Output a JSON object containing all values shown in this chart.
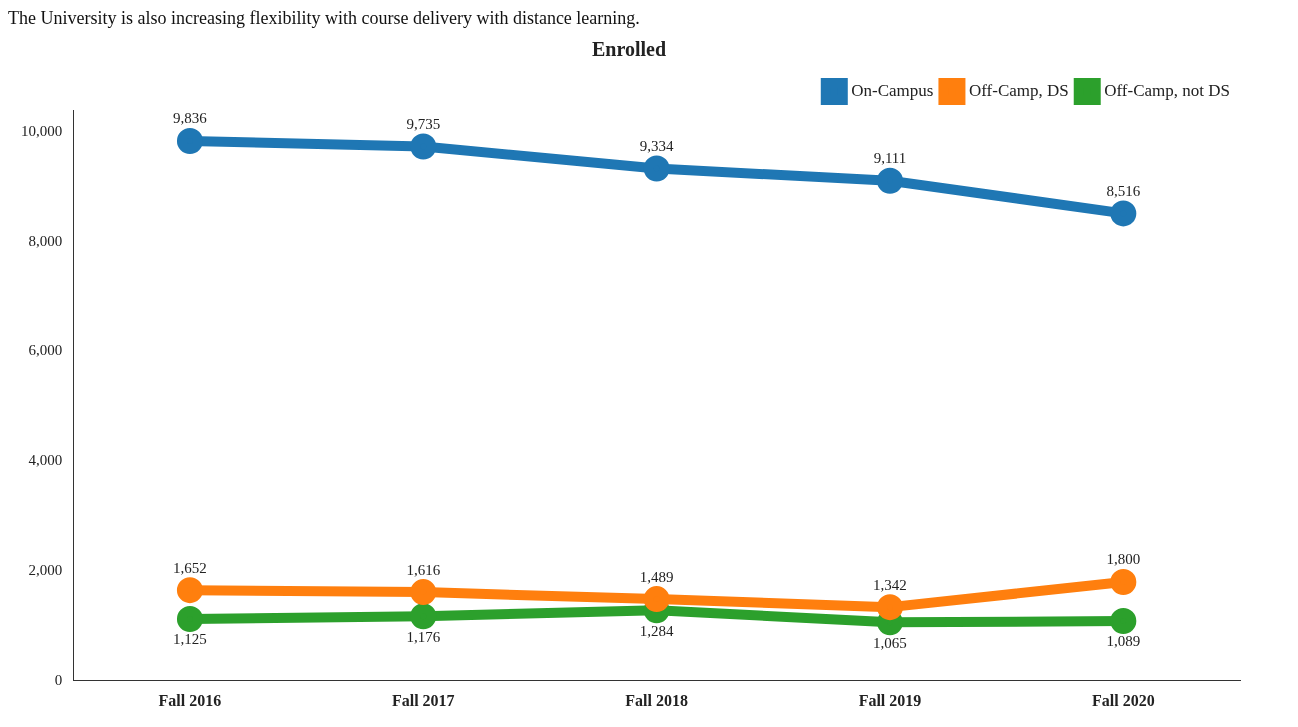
{
  "chart_data": {
    "type": "line",
    "title": "Enrolled",
    "annotations": [
      "The University is also increasing flexibility with course delivery with distance learning."
    ],
    "categories": [
      "Fall 2016",
      "Fall 2017",
      "Fall 2018",
      "Fall 2019",
      "Fall 2020"
    ],
    "series": [
      {
        "name": "On-Campus",
        "color": "#1f77b4",
        "values": [
          9836,
          9735,
          9334,
          9111,
          8516
        ],
        "value_labels": [
          "9,836",
          "9,735",
          "9,334",
          "9,111",
          "8,516"
        ]
      },
      {
        "name": "Off-Camp, DS",
        "color": "#ff7f0e",
        "values": [
          1652,
          1616,
          1489,
          1342,
          1800
        ],
        "value_labels": [
          "1,652",
          "1,616",
          "1,489",
          "1,342",
          "1,800"
        ]
      },
      {
        "name": "Off-Camp, not DS",
        "color": "#2ca02c",
        "values": [
          1125,
          1176,
          1284,
          1065,
          1089
        ],
        "value_labels": [
          "1,125",
          "1,176",
          "1,284",
          "1,065",
          "1,089"
        ]
      }
    ],
    "ylim": [
      0,
      10400
    ],
    "yticks": [
      0,
      {
        "value": 2000,
        "label": "2,000"
      },
      {
        "value": 4000,
        "label": "4,000"
      },
      {
        "value": 6000,
        "label": "6,000"
      },
      {
        "value": 8000,
        "label": "8,000"
      },
      {
        "value": 10000,
        "label": "10,000"
      }
    ],
    "grid": false,
    "legend": "top right",
    "marker": "circle",
    "line_style": "solid"
  }
}
